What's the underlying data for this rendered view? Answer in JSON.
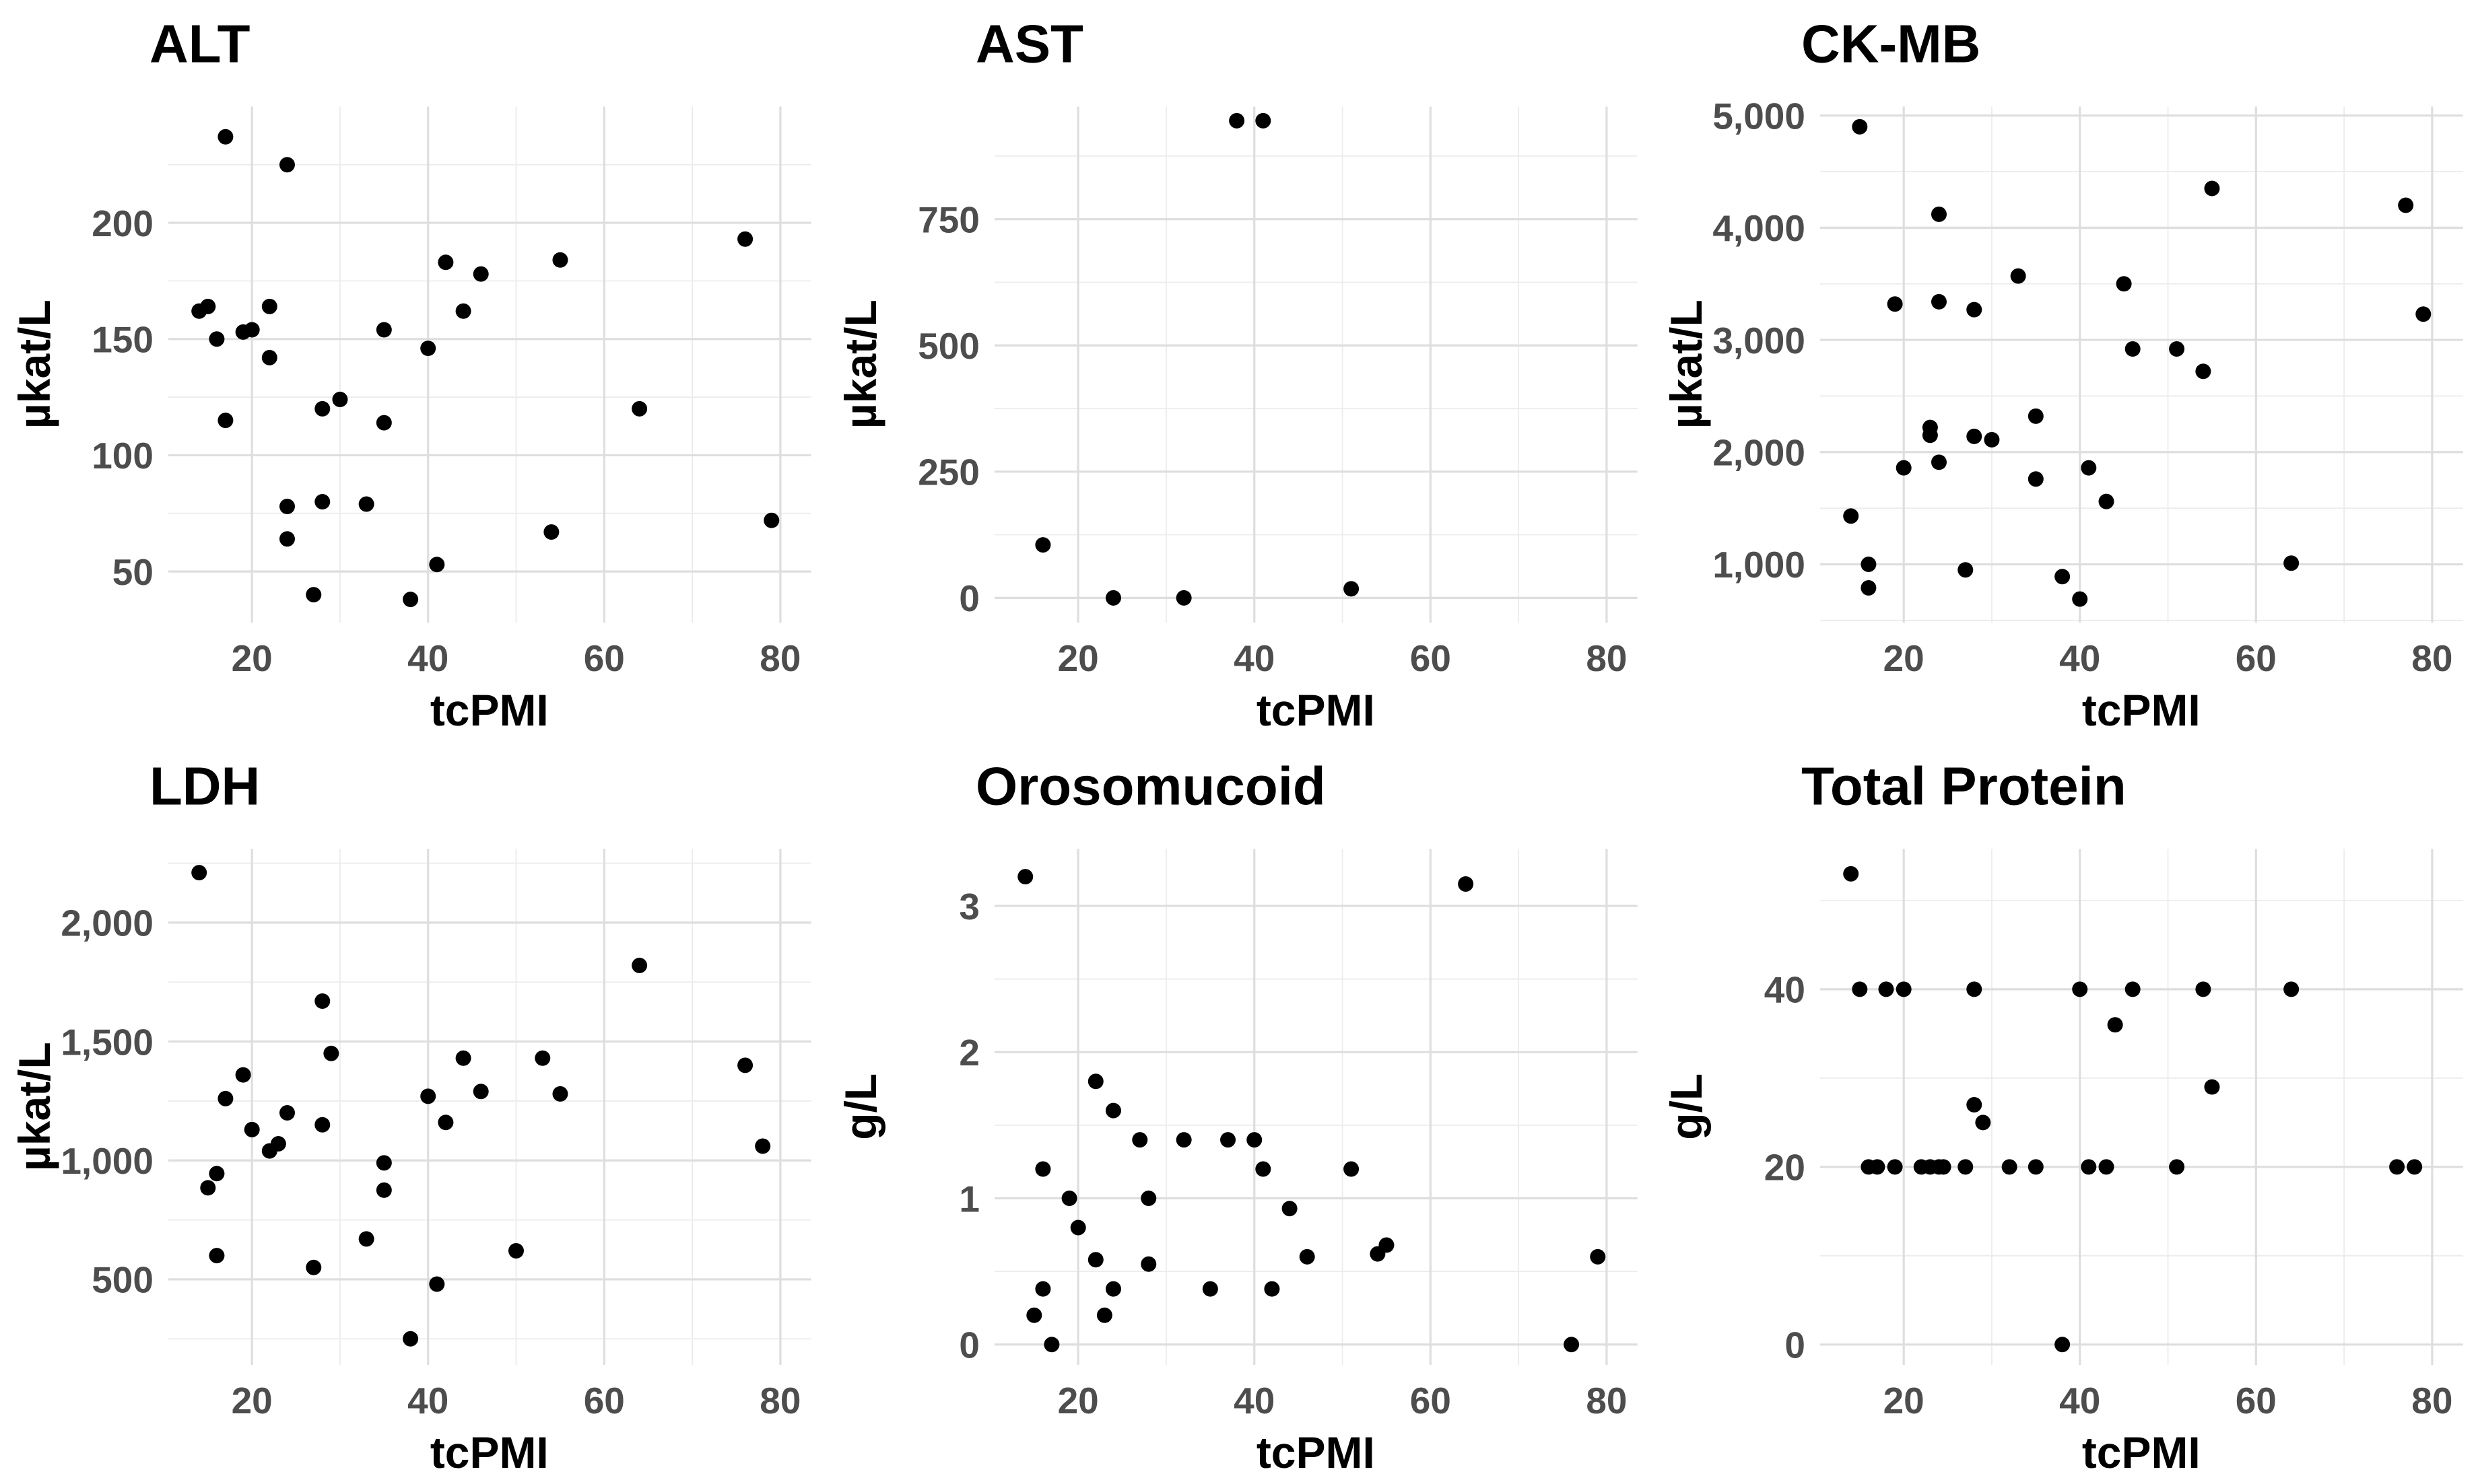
{
  "figure": {
    "background_color": "#ffffff",
    "point_color": "#000000",
    "grid_major_color": "#dedede",
    "grid_minor_color": "#ececec",
    "tick_label_color": "#4d4d4d",
    "text_color": "#000000",
    "layout": "2 rows x 3 columns of scatter panels",
    "shared_x_axis_label": "tcPMI"
  },
  "chart_data": [
    {
      "id": "alt",
      "type": "scatter",
      "title": "ALT",
      "xlabel": "tcPMI",
      "ylabel": "µkat/L",
      "xlim": [
        10.5,
        83.5
      ],
      "ylim": [
        28,
        250
      ],
      "xticks": [
        20,
        40,
        60,
        80
      ],
      "xtick_labels": [
        "20",
        "40",
        "60",
        "80"
      ],
      "xminor": [
        30,
        50,
        70
      ],
      "yticks": [
        50,
        100,
        150,
        200
      ],
      "ytick_labels": [
        "50",
        "100",
        "150",
        "200"
      ],
      "yminor": [
        75,
        125,
        175,
        225
      ],
      "grid": true,
      "legend": false,
      "points": [
        [
          17,
          237
        ],
        [
          24,
          225
        ],
        [
          76,
          193
        ],
        [
          55,
          184
        ],
        [
          42,
          183
        ],
        [
          46,
          178
        ],
        [
          22,
          164
        ],
        [
          15,
          164
        ],
        [
          44,
          162
        ],
        [
          14,
          162
        ],
        [
          35,
          154
        ],
        [
          20,
          154
        ],
        [
          19,
          153
        ],
        [
          16,
          150
        ],
        [
          40,
          146
        ],
        [
          22,
          142
        ],
        [
          30,
          124
        ],
        [
          28,
          120
        ],
        [
          64,
          120
        ],
        [
          17,
          115
        ],
        [
          35,
          114
        ],
        [
          28,
          80
        ],
        [
          33,
          79
        ],
        [
          24,
          78
        ],
        [
          79,
          72
        ],
        [
          54,
          67
        ],
        [
          24,
          64
        ],
        [
          41,
          53
        ],
        [
          27,
          40
        ],
        [
          38,
          38
        ]
      ]
    },
    {
      "id": "ast",
      "type": "scatter",
      "title": "AST",
      "xlabel": "tcPMI",
      "ylabel": "µkat/L",
      "xlim": [
        10.5,
        83.5
      ],
      "ylim": [
        -49,
        973
      ],
      "xticks": [
        20,
        40,
        60,
        80
      ],
      "xtick_labels": [
        "20",
        "40",
        "60",
        "80"
      ],
      "xminor": [
        30,
        50,
        70
      ],
      "yticks": [
        0,
        250,
        500,
        750
      ],
      "ytick_labels": [
        "0",
        "250",
        "500",
        "750"
      ],
      "yminor": [
        125,
        375,
        625,
        875
      ],
      "grid": true,
      "legend": false,
      "points": [
        [
          38,
          945
        ],
        [
          41,
          945
        ],
        [
          16,
          105
        ],
        [
          51,
          18
        ],
        [
          24,
          0
        ],
        [
          32,
          0
        ]
      ]
    },
    {
      "id": "ck-mb",
      "type": "scatter",
      "title": "CK-MB",
      "xlabel": "tcPMI",
      "ylabel": "µkat/L",
      "xlim": [
        10.5,
        83.5
      ],
      "ylim": [
        480,
        5080
      ],
      "xticks": [
        20,
        40,
        60,
        80
      ],
      "xtick_labels": [
        "20",
        "40",
        "60",
        "80"
      ],
      "xminor": [
        30,
        50,
        70
      ],
      "yticks": [
        1000,
        2000,
        3000,
        4000,
        5000
      ],
      "ytick_labels": [
        "1,000",
        "2,000",
        "3,000",
        "4,000",
        "5,000"
      ],
      "yminor": [
        500,
        1500,
        2500,
        3500,
        4500
      ],
      "grid": true,
      "legend": false,
      "points": [
        [
          15,
          4900
        ],
        [
          55,
          4350
        ],
        [
          77,
          4200
        ],
        [
          24,
          4120
        ],
        [
          33,
          3570
        ],
        [
          45,
          3500
        ],
        [
          24,
          3340
        ],
        [
          19,
          3320
        ],
        [
          28,
          3270
        ],
        [
          79,
          3230
        ],
        [
          46,
          2920
        ],
        [
          51,
          2920
        ],
        [
          54,
          2720
        ],
        [
          35,
          2320
        ],
        [
          23,
          2220
        ],
        [
          23,
          2150
        ],
        [
          28,
          2140
        ],
        [
          30,
          2110
        ],
        [
          24,
          1910
        ],
        [
          20,
          1860
        ],
        [
          41,
          1860
        ],
        [
          35,
          1760
        ],
        [
          43,
          1560
        ],
        [
          14,
          1430
        ],
        [
          64,
          1010
        ],
        [
          16,
          1000
        ],
        [
          27,
          950
        ],
        [
          38,
          890
        ],
        [
          16,
          790
        ],
        [
          40,
          690
        ]
      ]
    },
    {
      "id": "ldh",
      "type": "scatter",
      "title": "LDH",
      "xlabel": "tcPMI",
      "ylabel": "µkat/L",
      "xlim": [
        10.5,
        83.5
      ],
      "ylim": [
        140,
        2310
      ],
      "xticks": [
        20,
        40,
        60,
        80
      ],
      "xtick_labels": [
        "20",
        "40",
        "60",
        "80"
      ],
      "xminor": [
        30,
        50,
        70
      ],
      "yticks": [
        500,
        1000,
        1500,
        2000
      ],
      "ytick_labels": [
        "500",
        "1,000",
        "1,500",
        "2,000"
      ],
      "yminor": [
        250,
        750,
        1250,
        1750,
        2250
      ],
      "grid": true,
      "legend": false,
      "points": [
        [
          14,
          2210
        ],
        [
          64,
          1820
        ],
        [
          28,
          1670
        ],
        [
          29,
          1450
        ],
        [
          44,
          1430
        ],
        [
          53,
          1430
        ],
        [
          76,
          1400
        ],
        [
          19,
          1360
        ],
        [
          46,
          1290
        ],
        [
          55,
          1280
        ],
        [
          40,
          1270
        ],
        [
          17,
          1260
        ],
        [
          24,
          1200
        ],
        [
          42,
          1160
        ],
        [
          28,
          1150
        ],
        [
          20,
          1130
        ],
        [
          23,
          1070
        ],
        [
          78,
          1060
        ],
        [
          22,
          1040
        ],
        [
          35,
          990
        ],
        [
          16,
          945
        ],
        [
          15,
          885
        ],
        [
          35,
          875
        ],
        [
          33,
          670
        ],
        [
          50,
          620
        ],
        [
          16,
          600
        ],
        [
          27,
          550
        ],
        [
          41,
          480
        ],
        [
          38,
          250
        ]
      ]
    },
    {
      "id": "orosomucoid",
      "type": "scatter",
      "title": "Orosomucoid",
      "xlabel": "tcPMI",
      "ylabel": "g/L",
      "xlim": [
        10.5,
        83.5
      ],
      "ylim": [
        -0.14,
        3.39
      ],
      "xticks": [
        20,
        40,
        60,
        80
      ],
      "xtick_labels": [
        "20",
        "40",
        "60",
        "80"
      ],
      "xminor": [
        30,
        50,
        70
      ],
      "yticks": [
        0,
        1,
        2,
        3
      ],
      "ytick_labels": [
        "0",
        "1",
        "2",
        "3"
      ],
      "yminor": [
        0.5,
        1.5,
        2.5
      ],
      "grid": true,
      "legend": false,
      "points": [
        [
          14,
          3.2
        ],
        [
          64,
          3.15
        ],
        [
          22,
          1.8
        ],
        [
          24,
          1.6
        ],
        [
          27,
          1.4
        ],
        [
          32,
          1.4
        ],
        [
          37,
          1.4
        ],
        [
          40,
          1.4
        ],
        [
          16,
          1.2
        ],
        [
          41,
          1.2
        ],
        [
          51,
          1.2
        ],
        [
          19,
          1.0
        ],
        [
          28,
          1.0
        ],
        [
          44,
          0.93
        ],
        [
          20,
          0.8
        ],
        [
          55,
          0.68
        ],
        [
          54,
          0.62
        ],
        [
          46,
          0.6
        ],
        [
          79,
          0.6
        ],
        [
          22,
          0.58
        ],
        [
          28,
          0.55
        ],
        [
          16,
          0.38
        ],
        [
          24,
          0.38
        ],
        [
          35,
          0.38
        ],
        [
          42,
          0.38
        ],
        [
          15,
          0.2
        ],
        [
          23,
          0.2
        ],
        [
          17,
          0
        ],
        [
          76,
          0
        ]
      ]
    },
    {
      "id": "total-protein",
      "type": "scatter",
      "title": "Total Protein",
      "xlabel": "tcPMI",
      "ylabel": "g/L",
      "xlim": [
        10.5,
        83.5
      ],
      "ylim": [
        -2.3,
        55.8
      ],
      "xticks": [
        20,
        40,
        60,
        80
      ],
      "xtick_labels": [
        "20",
        "40",
        "60",
        "80"
      ],
      "xminor": [
        30,
        50,
        70
      ],
      "yticks": [
        0,
        20,
        40
      ],
      "ytick_labels": [
        "0",
        "20",
        "40"
      ],
      "yminor": [
        10,
        30,
        50
      ],
      "grid": true,
      "legend": false,
      "points": [
        [
          14,
          53
        ],
        [
          15,
          40
        ],
        [
          18,
          40
        ],
        [
          20,
          40
        ],
        [
          28,
          40
        ],
        [
          40,
          40
        ],
        [
          46,
          40
        ],
        [
          54,
          40
        ],
        [
          64,
          40
        ],
        [
          44,
          36
        ],
        [
          55,
          29
        ],
        [
          28,
          27
        ],
        [
          29,
          25
        ],
        [
          16,
          20
        ],
        [
          17,
          20
        ],
        [
          19,
          20
        ],
        [
          22,
          20
        ],
        [
          23,
          20
        ],
        [
          24,
          20
        ],
        [
          24.5,
          20
        ],
        [
          27,
          20
        ],
        [
          32,
          20
        ],
        [
          35,
          20
        ],
        [
          41,
          20
        ],
        [
          43,
          20
        ],
        [
          51,
          20
        ],
        [
          76,
          20
        ],
        [
          78,
          20
        ],
        [
          38,
          0
        ]
      ]
    }
  ]
}
